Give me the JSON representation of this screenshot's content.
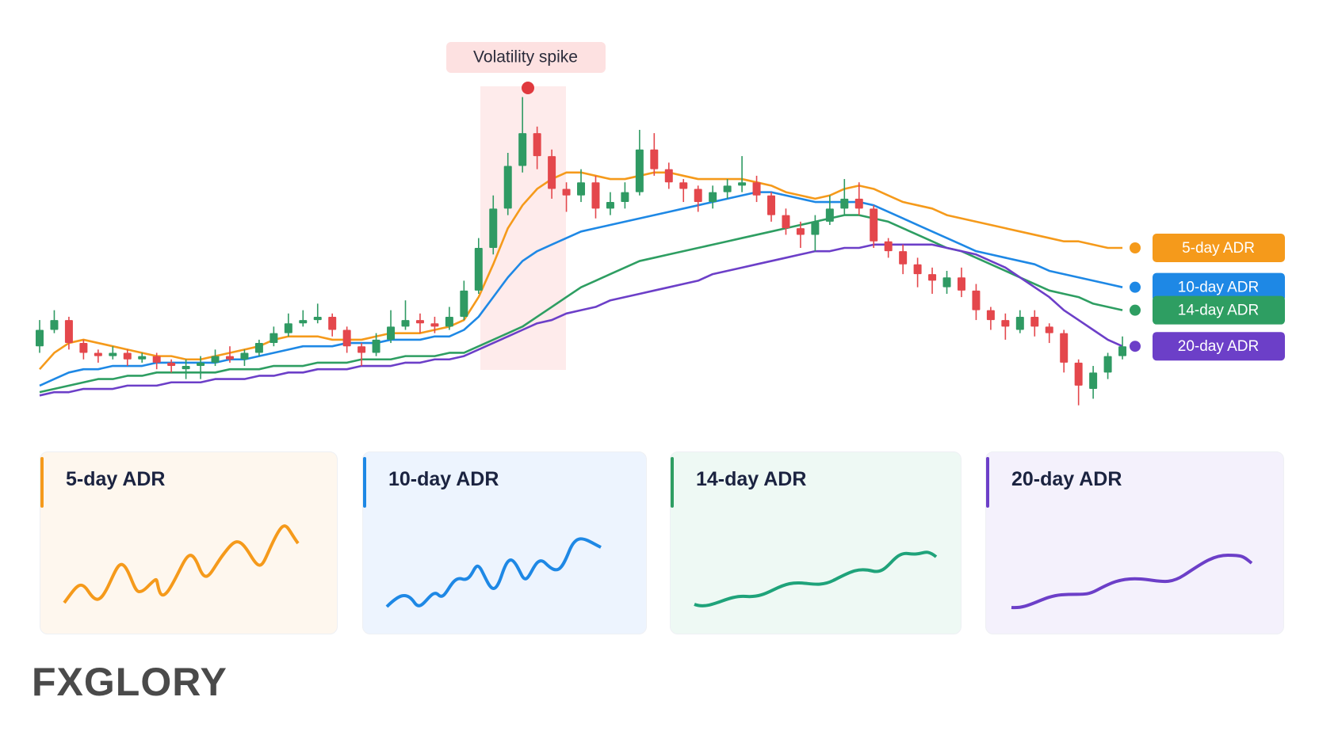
{
  "chart_data": {
    "type": "candlestick",
    "annotation": "Volatility spike",
    "ylim": [
      0,
      100
    ],
    "open": [
      20,
      25,
      28,
      21,
      18,
      17,
      18,
      16,
      17,
      15,
      13,
      14,
      15,
      17,
      16,
      18,
      21,
      24,
      27,
      28,
      29,
      25,
      20,
      18,
      22,
      26,
      28,
      27,
      26,
      29,
      37,
      50,
      62,
      75,
      85,
      78,
      68,
      66,
      70,
      62,
      64,
      67,
      80,
      74,
      70,
      68,
      64,
      67,
      69,
      70,
      66,
      60,
      56,
      54,
      58,
      62,
      65,
      62,
      52,
      49,
      45,
      42,
      38,
      41,
      37,
      31,
      28,
      25,
      29,
      26,
      24,
      15,
      7,
      12,
      17
    ],
    "high": [
      28,
      31,
      29,
      22,
      19,
      20,
      19,
      18,
      18,
      16,
      16,
      17,
      19,
      20,
      19,
      22,
      26,
      30,
      31,
      33,
      30,
      26,
      21,
      24,
      31,
      34,
      30,
      29,
      32,
      40,
      53,
      66,
      79,
      96,
      87,
      80,
      70,
      74,
      72,
      67,
      70,
      86,
      85,
      76,
      71,
      69,
      69,
      71,
      78,
      72,
      67,
      62,
      58,
      60,
      66,
      71,
      70,
      63,
      53,
      51,
      47,
      44,
      43,
      44,
      39,
      32,
      30,
      31,
      31,
      27,
      25,
      16,
      14,
      18,
      23
    ],
    "low": [
      18,
      24,
      19,
      16,
      15,
      16,
      14,
      15,
      13,
      12,
      10,
      10,
      14,
      15,
      14,
      17,
      20,
      23,
      26,
      27,
      23,
      18,
      14,
      17,
      21,
      25,
      24,
      24,
      25,
      28,
      36,
      48,
      60,
      73,
      74,
      65,
      61,
      64,
      59,
      60,
      62,
      66,
      72,
      68,
      64,
      61,
      62,
      65,
      67,
      64,
      58,
      54,
      50,
      49,
      57,
      60,
      60,
      50,
      47,
      42,
      38,
      36,
      36,
      35,
      28,
      25,
      22,
      24,
      23,
      21,
      12,
      2,
      4,
      10,
      16
    ],
    "close": [
      25,
      28,
      21,
      18,
      17,
      18,
      16,
      17,
      15,
      14,
      14,
      15,
      17,
      16,
      18,
      21,
      24,
      27,
      28,
      29,
      25,
      20,
      18,
      22,
      26,
      28,
      27,
      26,
      29,
      37,
      50,
      62,
      75,
      85,
      78,
      68,
      66,
      70,
      62,
      64,
      67,
      80,
      74,
      70,
      68,
      64,
      67,
      69,
      70,
      66,
      60,
      56,
      54,
      58,
      62,
      65,
      62,
      52,
      49,
      45,
      42,
      40,
      41,
      37,
      31,
      28,
      26,
      29,
      26,
      24,
      15,
      8,
      12,
      17,
      20
    ],
    "series": [
      {
        "name": "5-day ADR",
        "color": "#f59a1b",
        "values": [
          13,
          18,
          21,
          22,
          21,
          20,
          19,
          18,
          17,
          17,
          16,
          16,
          17,
          18,
          19,
          20,
          22,
          23,
          23,
          23,
          22,
          22,
          22,
          23,
          24,
          24,
          24,
          25,
          26,
          28,
          35,
          45,
          56,
          63,
          68,
          71,
          73,
          73,
          72,
          71,
          71,
          72,
          73,
          73,
          72,
          71,
          71,
          71,
          71,
          70,
          69,
          67,
          66,
          65,
          66,
          68,
          69,
          68,
          66,
          64,
          63,
          62,
          60,
          59,
          58,
          57,
          56,
          55,
          54,
          53,
          52,
          52,
          51,
          50,
          50
        ]
      },
      {
        "name": "10-day ADR",
        "color": "#1e88e5",
        "values": [
          8,
          10,
          12,
          13,
          13,
          14,
          14,
          14,
          15,
          15,
          15,
          15,
          15,
          16,
          16,
          17,
          18,
          19,
          20,
          20,
          20,
          21,
          21,
          21,
          22,
          22,
          22,
          23,
          23,
          25,
          29,
          35,
          41,
          46,
          49,
          51,
          53,
          55,
          56,
          57,
          58,
          59,
          60,
          61,
          62,
          63,
          64,
          65,
          66,
          67,
          67,
          66,
          65,
          64,
          64,
          64,
          64,
          63,
          61,
          59,
          57,
          55,
          53,
          51,
          49,
          48,
          47,
          46,
          45,
          43,
          42,
          41,
          40,
          39,
          38
        ]
      },
      {
        "name": "14-day ADR",
        "color": "#2e9e62",
        "values": [
          6,
          7,
          8,
          9,
          10,
          10,
          11,
          11,
          12,
          12,
          12,
          12,
          12,
          13,
          13,
          13,
          14,
          14,
          14,
          15,
          15,
          15,
          16,
          16,
          16,
          17,
          17,
          17,
          18,
          18,
          20,
          22,
          24,
          26,
          29,
          32,
          35,
          38,
          40,
          42,
          44,
          46,
          47,
          48,
          49,
          50,
          51,
          52,
          53,
          54,
          55,
          56,
          57,
          58,
          59,
          60,
          60,
          59,
          58,
          56,
          54,
          52,
          50,
          49,
          47,
          45,
          43,
          41,
          39,
          37,
          36,
          35,
          33,
          32,
          31
        ]
      },
      {
        "name": "20-day ADR",
        "color": "#6c3fc8",
        "values": [
          5,
          6,
          6,
          7,
          7,
          7,
          8,
          8,
          8,
          9,
          9,
          9,
          10,
          10,
          10,
          11,
          11,
          12,
          12,
          13,
          13,
          13,
          14,
          14,
          14,
          15,
          15,
          16,
          16,
          17,
          19,
          21,
          23,
          25,
          27,
          28,
          30,
          31,
          32,
          34,
          35,
          36,
          37,
          38,
          39,
          40,
          42,
          43,
          44,
          45,
          46,
          47,
          48,
          49,
          49,
          50,
          50,
          51,
          51,
          51,
          51,
          51,
          50,
          49,
          48,
          46,
          44,
          41,
          38,
          35,
          31,
          28,
          25,
          22,
          20
        ]
      }
    ],
    "up_color": "#2f9a63",
    "down_color": "#e4474c"
  },
  "cards": [
    {
      "title": "5-day ADR"
    },
    {
      "title": "10-day ADR"
    },
    {
      "title": "14-day ADR"
    },
    {
      "title": "20-day ADR"
    }
  ],
  "logo": "FXGLORY"
}
